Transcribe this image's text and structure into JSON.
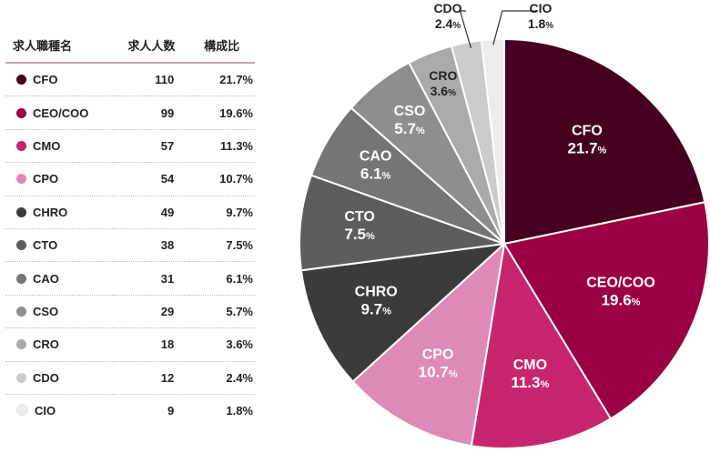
{
  "table": {
    "headers": [
      "求人職種名",
      "求人人数",
      "構成比"
    ]
  },
  "chart_data": {
    "type": "pie",
    "categories": [
      "CFO",
      "CEO/COO",
      "CMO",
      "CPO",
      "CHRO",
      "CTO",
      "CAO",
      "CSO",
      "CRO",
      "CDO",
      "CIO"
    ],
    "values": [
      110,
      99,
      57,
      54,
      49,
      38,
      31,
      29,
      18,
      12,
      9
    ],
    "percent_labels": [
      "21.7",
      "19.6",
      "11.3",
      "10.7",
      "9.7",
      "7.5",
      "6.1",
      "5.7",
      "3.6",
      "2.4",
      "1.8"
    ],
    "table_ratios": [
      "21.7%",
      "19.6%",
      "11.3%",
      "10.7%",
      "9.7%",
      "7.5%",
      "6.1%",
      "5.7%",
      "3.6%",
      "2.4%",
      "1.8%"
    ],
    "percent_unit": "%",
    "colors": [
      "#45001f",
      "#9b0042",
      "#c7266f",
      "#de8ab6",
      "#3b3b3b",
      "#5d5d5d",
      "#757575",
      "#8e8e8e",
      "#aaaaaa",
      "#cbcbcb",
      "#ececec"
    ],
    "label_colors": [
      "#ffffff",
      "#ffffff",
      "#ffffff",
      "#ffffff",
      "#ffffff",
      "#ffffff",
      "#ffffff",
      "#ffffff",
      "#222222",
      "#222222",
      "#222222"
    ],
    "legend_placement": "left-table",
    "start_angle": "12-o'clock",
    "direction": "clockwise"
  }
}
